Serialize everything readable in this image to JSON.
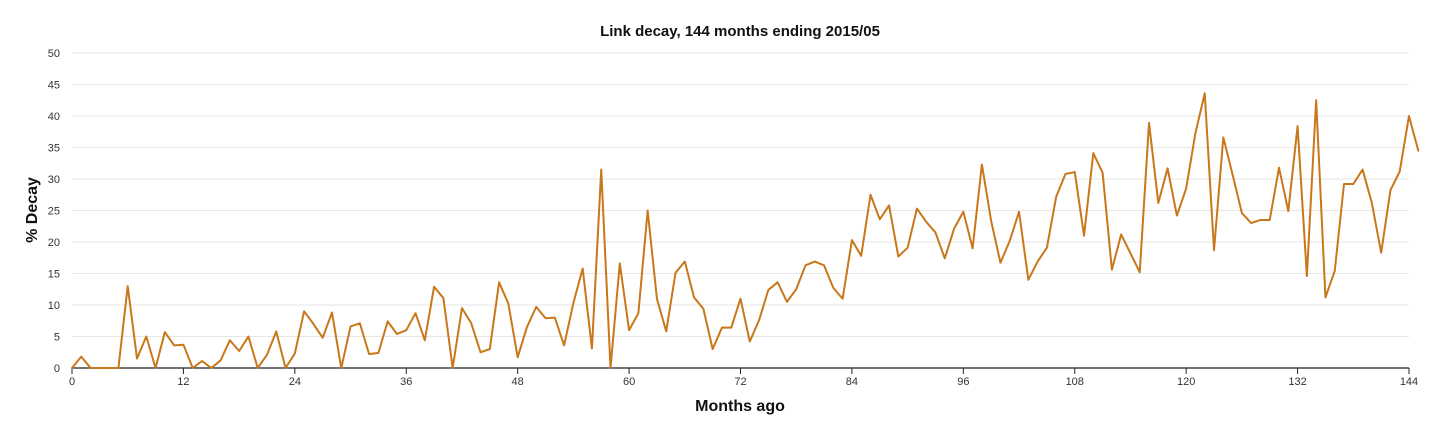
{
  "chart_data": {
    "type": "line",
    "title": "Link decay, 144 months ending 2015/05",
    "xlabel": "Months ago",
    "ylabel": "% Decay",
    "xlim": [
      0,
      144
    ],
    "ylim": [
      0,
      50
    ],
    "x_ticks": [
      0,
      12,
      24,
      36,
      48,
      60,
      72,
      84,
      96,
      108,
      120,
      132,
      144
    ],
    "y_ticks": [
      0,
      5,
      10,
      15,
      20,
      25,
      30,
      35,
      40,
      45,
      50
    ],
    "grid": true,
    "legend": "none",
    "line_color": "#c8781a",
    "series": [
      {
        "values": [
          0,
          1.8,
          0,
          0,
          0,
          0,
          13,
          1.5,
          5,
          0,
          5.7,
          3.6,
          3.7,
          0,
          1.1,
          0,
          1.2,
          4.4,
          2.7,
          5,
          0,
          2.1,
          5.8,
          0,
          2.3,
          9,
          7,
          4.8,
          8.8,
          0,
          6.6,
          7.1,
          2.2,
          2.4,
          7.4,
          5.4,
          6,
          8.7,
          4.4,
          12.9,
          11.1,
          0,
          9.5,
          7.1,
          2.5,
          3,
          13.6,
          10.2,
          1.7,
          6.5,
          9.7,
          7.9,
          8,
          3.6,
          10.3,
          15.8,
          3.1,
          31.5,
          0,
          16.6,
          6,
          8.7,
          25,
          11,
          5.8,
          15.1,
          16.9,
          11.2,
          9.4,
          3,
          6.4,
          6.4,
          11,
          4.2,
          7.6,
          12.4,
          13.6,
          10.5,
          12.5,
          16.3,
          16.9,
          16.3,
          12.7,
          11,
          20.3,
          17.8,
          27.5,
          23.6,
          25.8,
          17.7,
          19.1,
          25.3,
          23.2,
          21.5,
          17.4,
          22.1,
          24.8,
          19,
          32.3,
          23.3,
          16.7,
          20.2,
          24.8,
          14,
          16.9,
          19.1,
          27.2,
          30.8,
          31.1,
          21,
          34.1,
          31,
          15.6,
          21.2,
          18.2,
          15.2,
          38.9,
          26.2,
          31.7,
          24.2,
          28.5,
          37.3,
          43.6,
          18.7,
          36.6,
          30.7,
          24.6,
          23,
          23.5,
          23.5,
          31.8,
          24.9,
          38.4,
          14.6,
          42.5,
          11.2,
          15.4,
          29.2,
          29.2,
          31.5,
          26.2,
          18.3,
          28.2,
          31.2,
          40,
          34.5
        ]
      }
    ]
  }
}
